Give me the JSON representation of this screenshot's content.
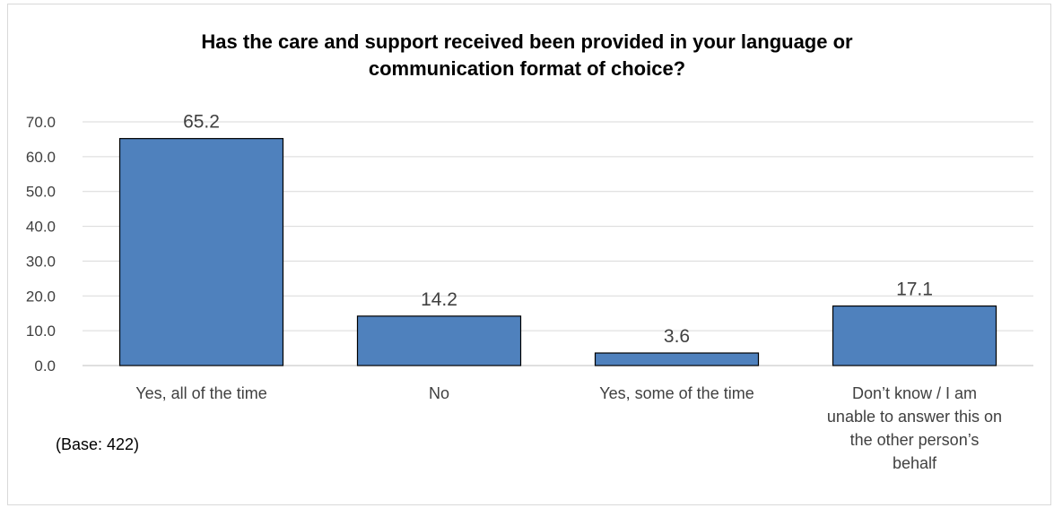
{
  "chart_data": {
    "type": "bar",
    "title_lines": [
      "Has the care and support received been provided in your language or",
      "communication format of choice?"
    ],
    "categories": [
      "Yes, all of the time",
      "No",
      "Yes, some of the time",
      "Don’t know / I am unable to answer this on the other person’s behalf"
    ],
    "category_lines": [
      [
        "Yes, all of the time"
      ],
      [
        "No"
      ],
      [
        "Yes, some of the time"
      ],
      [
        "Don’t know / I am",
        "unable to answer this on",
        "the other person’s",
        "behalf"
      ]
    ],
    "values": [
      65.2,
      14.2,
      3.6,
      17.1
    ],
    "data_labels": [
      "65.2",
      "14.2",
      "3.6",
      "17.1"
    ],
    "ylim": [
      0,
      70
    ],
    "yticks": [
      "0.0",
      "10.0",
      "20.0",
      "30.0",
      "40.0",
      "50.0",
      "60.0",
      "70.0"
    ],
    "grid": true,
    "legend": "none",
    "bar_color": "#4f81bd",
    "gridline_color": "#d9d9d9",
    "note": "(Base: 422)"
  }
}
